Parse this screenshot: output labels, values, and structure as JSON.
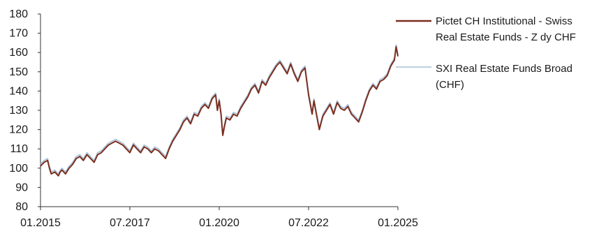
{
  "chart_data": {
    "type": "line",
    "title": "",
    "xlabel": "",
    "ylabel": "",
    "ylim": [
      80,
      180
    ],
    "y_ticks": [
      80,
      90,
      100,
      110,
      120,
      130,
      140,
      150,
      160,
      170,
      180
    ],
    "x_ticks": [
      {
        "value": 2015.0,
        "label": "01.2015"
      },
      {
        "value": 2017.5,
        "label": "07.2017"
      },
      {
        "value": 2020.0,
        "label": "01.2020"
      },
      {
        "value": 2022.5,
        "label": "07.2022"
      },
      {
        "value": 2025.0,
        "label": "01.2025"
      }
    ],
    "xlim": [
      2015.0,
      2025.0
    ],
    "grid": false,
    "legend_position": "right",
    "series": [
      {
        "name": "Pictet CH Institutional - Swiss Real Estate Funds - Z dy CHF",
        "legend_lines": [
          "Pictet CH Institutional - Swiss",
          "Real Estate Funds - Z dy CHF"
        ],
        "color": "#7b2e1e",
        "x": [
          2015.0,
          2015.1,
          2015.2,
          2015.25,
          2015.3,
          2015.4,
          2015.5,
          2015.55,
          2015.6,
          2015.7,
          2015.8,
          2015.9,
          2016.0,
          2016.1,
          2016.2,
          2016.3,
          2016.4,
          2016.5,
          2016.6,
          2016.7,
          2016.8,
          2016.9,
          2017.0,
          2017.1,
          2017.2,
          2017.3,
          2017.4,
          2017.5,
          2017.6,
          2017.7,
          2017.8,
          2017.9,
          2018.0,
          2018.1,
          2018.2,
          2018.3,
          2018.4,
          2018.5,
          2018.6,
          2018.7,
          2018.8,
          2018.9,
          2019.0,
          2019.1,
          2019.2,
          2019.3,
          2019.4,
          2019.5,
          2019.6,
          2019.7,
          2019.8,
          2019.9,
          2019.95,
          2020.0,
          2020.05,
          2020.1,
          2020.15,
          2020.2,
          2020.3,
          2020.4,
          2020.5,
          2020.6,
          2020.7,
          2020.8,
          2020.9,
          2021.0,
          2021.1,
          2021.2,
          2021.3,
          2021.4,
          2021.5,
          2021.6,
          2021.7,
          2021.8,
          2021.9,
          2022.0,
          2022.1,
          2022.2,
          2022.3,
          2022.4,
          2022.5,
          2022.6,
          2022.65,
          2022.7,
          2022.8,
          2022.9,
          2023.0,
          2023.1,
          2023.2,
          2023.3,
          2023.4,
          2023.5,
          2023.6,
          2023.7,
          2023.8,
          2023.9,
          2024.0,
          2024.1,
          2024.2,
          2024.3,
          2024.4,
          2024.5,
          2024.6,
          2024.7,
          2024.8,
          2024.9,
          2024.95,
          2025.0
        ],
        "values": [
          101,
          103,
          104,
          100,
          97,
          98,
          96,
          98,
          99,
          97,
          100,
          102,
          105,
          106,
          104,
          107,
          105,
          103,
          107,
          108,
          110,
          112,
          113,
          114,
          113,
          112,
          110,
          108,
          112,
          110,
          108,
          111,
          110,
          108,
          110,
          109,
          107,
          105,
          110,
          114,
          117,
          120,
          124,
          126,
          123,
          128,
          127,
          131,
          133,
          131,
          136,
          138,
          130,
          135,
          128,
          117,
          122,
          126,
          125,
          128,
          127,
          131,
          134,
          137,
          141,
          143,
          139,
          145,
          143,
          147,
          150,
          153,
          155,
          152,
          149,
          154,
          149,
          145,
          150,
          152,
          138,
          128,
          135,
          130,
          120,
          127,
          130,
          133,
          128,
          134,
          131,
          130,
          132,
          128,
          126,
          124,
          129,
          135,
          140,
          143,
          141,
          145,
          146,
          148,
          153,
          156,
          163,
          158
        ]
      },
      {
        "name": "SXI Real Estate Funds Broad (CHF)",
        "legend_lines": [
          "SXI Real Estate Funds Broad",
          "(CHF)"
        ],
        "color": "#a7bfd6",
        "x": [
          2015.0,
          2015.1,
          2015.2,
          2015.25,
          2015.3,
          2015.4,
          2015.5,
          2015.55,
          2015.6,
          2015.7,
          2015.8,
          2015.9,
          2016.0,
          2016.1,
          2016.2,
          2016.3,
          2016.4,
          2016.5,
          2016.6,
          2016.7,
          2016.8,
          2016.9,
          2017.0,
          2017.1,
          2017.2,
          2017.3,
          2017.4,
          2017.5,
          2017.6,
          2017.7,
          2017.8,
          2017.9,
          2018.0,
          2018.1,
          2018.2,
          2018.3,
          2018.4,
          2018.5,
          2018.6,
          2018.7,
          2018.8,
          2018.9,
          2019.0,
          2019.1,
          2019.2,
          2019.3,
          2019.4,
          2019.5,
          2019.6,
          2019.7,
          2019.8,
          2019.9,
          2019.95,
          2020.0,
          2020.05,
          2020.1,
          2020.15,
          2020.2,
          2020.3,
          2020.4,
          2020.5,
          2020.6,
          2020.7,
          2020.8,
          2020.9,
          2021.0,
          2021.1,
          2021.2,
          2021.3,
          2021.4,
          2021.5,
          2021.6,
          2021.7,
          2021.8,
          2021.9,
          2022.0,
          2022.1,
          2022.2,
          2022.3,
          2022.4,
          2022.5,
          2022.6,
          2022.65,
          2022.7,
          2022.8,
          2022.9,
          2023.0,
          2023.1,
          2023.2,
          2023.3,
          2023.4,
          2023.5,
          2023.6,
          2023.7,
          2023.8,
          2023.9,
          2024.0,
          2024.1,
          2024.2,
          2024.3,
          2024.4,
          2024.5,
          2024.6,
          2024.7,
          2024.8,
          2024.9,
          2024.95,
          2025.0
        ],
        "values": [
          102,
          104,
          105,
          101,
          98,
          99,
          97,
          99,
          100,
          98,
          101,
          103,
          106,
          107,
          105,
          108,
          106,
          104,
          108,
          109,
          111,
          113,
          114,
          115,
          114,
          113,
          111,
          109,
          113,
          111,
          109,
          112,
          111,
          109,
          111,
          110,
          108,
          106,
          111,
          115,
          118,
          121,
          125,
          127,
          124,
          129,
          128,
          132,
          134,
          132,
          137,
          139,
          131,
          136,
          129,
          118,
          123,
          127,
          126,
          129,
          128,
          132,
          135,
          138,
          142,
          144,
          140,
          146,
          144,
          148,
          151,
          154,
          156,
          153,
          150,
          155,
          150,
          146,
          151,
          153,
          139,
          129,
          136,
          131,
          121,
          128,
          131,
          134,
          129,
          135,
          132,
          131,
          133,
          129,
          127,
          125,
          130,
          136,
          141,
          144,
          142,
          146,
          147,
          149,
          154,
          157,
          164,
          159
        ]
      }
    ]
  }
}
